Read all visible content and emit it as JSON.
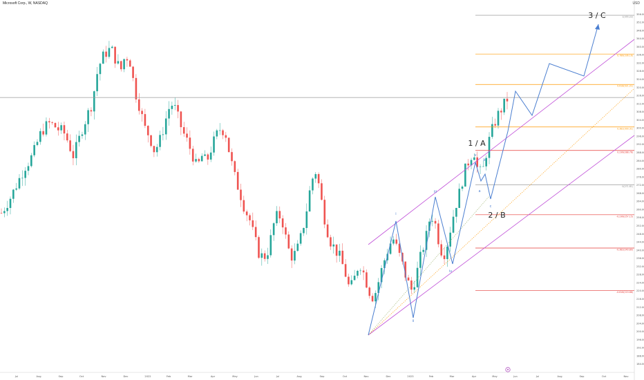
{
  "symbol_title": "Microsoft Corp., W, NASDAQ",
  "currency": "USD",
  "chart_data": {
    "type": "line",
    "title": "Microsoft Corp., W, NASDAQ",
    "ylim": [
      180,
      360
    ],
    "y_ticks": [
      "356.00",
      "352.00",
      "348.00",
      "344.00",
      "340.00",
      "336.00",
      "332.00",
      "328.00",
      "324.00",
      "320.00",
      "316.00",
      "312.00",
      "308.00",
      "304.00",
      "300.00",
      "296.00",
      "292.00",
      "288.00",
      "284.00",
      "280.00",
      "276.00",
      "272.00",
      "268.00",
      "264.00",
      "260.00",
      "256.00",
      "252.00",
      "248.00",
      "244.00",
      "240.00",
      "236.00",
      "232.00",
      "228.00",
      "224.00",
      "220.00",
      "216.00",
      "212.00",
      "208.00",
      "204.00",
      "200.00",
      "196.00",
      "192.00",
      "188.00",
      "184.00"
    ],
    "x_ticks": [
      "Jul",
      "Aug",
      "Sep",
      "Oct",
      "Nov",
      "Dec",
      "2022",
      "Feb",
      "Mar",
      "Apr",
      "May",
      "Jun",
      "Jul",
      "Aug",
      "Sep",
      "Oct",
      "Nov",
      "Dec",
      "2023",
      "Feb",
      "Mar",
      "Apr",
      "May",
      "Jun",
      "Jul",
      "Aug",
      "Sep",
      "Oct",
      "Nov"
    ],
    "price_path": [
      258,
      262,
      266,
      271,
      276,
      281,
      284,
      289,
      296,
      300,
      302,
      301,
      299,
      298,
      293,
      286,
      292,
      300,
      306,
      312,
      326,
      334,
      337,
      339,
      333,
      328,
      336,
      332,
      318,
      310,
      300,
      296,
      289,
      292,
      300,
      309,
      312,
      305,
      298,
      293,
      287,
      280,
      286,
      283,
      290,
      296,
      300,
      297,
      285,
      275,
      268,
      260,
      255,
      246,
      238,
      236,
      240,
      252,
      258,
      253,
      241,
      236,
      240,
      248,
      260,
      274,
      279,
      265,
      252,
      244,
      240,
      236,
      229,
      220,
      226,
      234,
      228,
      220,
      216,
      224,
      233,
      240,
      246,
      240,
      233,
      225,
      220,
      228,
      238,
      246,
      258,
      252,
      240,
      238,
      249,
      260,
      268,
      278,
      284,
      289,
      277,
      280,
      292,
      300,
      306,
      310,
      314
    ],
    "horizontal_line_value": 314.8,
    "fib_levels": [
      {
        "label": "1(355.22)",
        "value": 355.22,
        "color": "#888888"
      },
      {
        "label": "0.786(336.16)",
        "value": 336.16,
        "color": "#ff9800"
      },
      {
        "label": "0.618(321.21)",
        "value": 321.21,
        "color": "#ff9800"
      },
      {
        "label": "0.382(300.31)",
        "value": 300.31,
        "color": "#ff9800"
      },
      {
        "label": "0.236(288.76)",
        "value": 288.76,
        "color": "#e53935"
      },
      {
        "label": "0(271.81)",
        "value": 271.81,
        "color": "#888888"
      },
      {
        "label": "-0.236(257.15)",
        "value": 257.15,
        "color": "#e53935"
      },
      {
        "label": "-0.382(240.80)",
        "value": 240.8,
        "color": "#e53935"
      },
      {
        "label": "-0.618(219.88)",
        "value": 219.88,
        "color": "#e53935"
      }
    ],
    "waves": [
      "i",
      "ii",
      "iii",
      "iv",
      "v",
      "a",
      "b",
      "c",
      "1 / A",
      "2 / B",
      "3 / C"
    ]
  },
  "colors": {
    "up": "#26a69a",
    "down": "#ef5350",
    "channel": "#c050d8",
    "projection": "#4a7ed0",
    "fib_orange": "#ff9800",
    "fib_red": "#e53935",
    "fib_gray": "#888888"
  }
}
